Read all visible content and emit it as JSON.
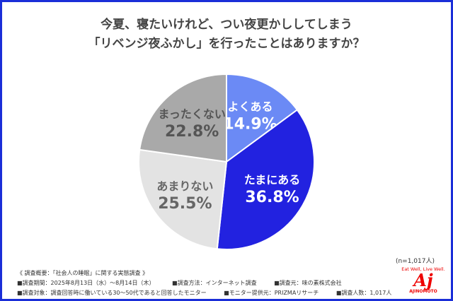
{
  "title_lines": [
    "今夏、寝たいけれど、つい夜更かししてしまう",
    "「リベンジ夜ふかし」を行ったことはありますか？"
  ],
  "sample_size": "(n=1,017人)",
  "chart_data": {
    "type": "pie",
    "title": "今夏、寝たいけれど、つい夜更かししてしまう「リベンジ夜ふかし」を行ったことはありますか？",
    "start": "12 o'clock, clockwise",
    "slices": [
      {
        "label": "よくある",
        "value": 14.9,
        "display": "14.9%",
        "color": "#6b8af5",
        "text_color": "#ffffff"
      },
      {
        "label": "たまにある",
        "value": 36.8,
        "display": "36.8%",
        "color": "#2222e0",
        "text_color": "#ffffff"
      },
      {
        "label": "あまりない",
        "value": 25.5,
        "display": "25.5%",
        "color": "#e3e3e3",
        "text_color": "#666666"
      },
      {
        "label": "まったくない",
        "value": 22.8,
        "display": "22.8%",
        "color": "#a9a9a9",
        "text_color": "#555555"
      }
    ]
  },
  "footer": {
    "heading": "《 調査概要：「社会人の睡眠」に関する実態調査 》",
    "line1": [
      "■調査期間：2025年8月13日（水）～8月14日（木）",
      "■調査方法：インターネット調査",
      "■調査元：味の素株式会社"
    ],
    "line2": [
      "■調査対象：調査回答時に働いている30～50代であると回答したモニター",
      "■モニター提供元：PRIZMAリサーチ",
      "■調査人数：1,017人"
    ]
  },
  "logo": {
    "tagline": "Eat Well, Live Well.",
    "mark": "Aj",
    "name": "AJINOMOTO"
  },
  "colors": {
    "border": "#1a2ed8"
  }
}
